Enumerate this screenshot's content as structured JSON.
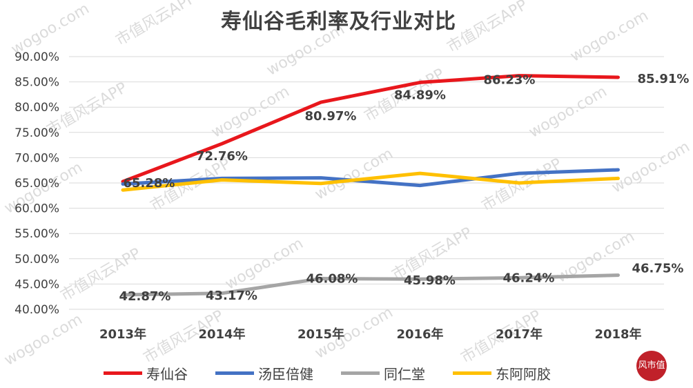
{
  "chart_data": {
    "type": "line",
    "title": "寿仙谷毛利率及行业对比",
    "categories": [
      "2013年",
      "2014年",
      "2015年",
      "2016年",
      "2017年",
      "2018年"
    ],
    "ylim": [
      40,
      90
    ],
    "yticks": [
      "40.00%",
      "45.00%",
      "50.00%",
      "55.00%",
      "60.00%",
      "65.00%",
      "70.00%",
      "75.00%",
      "80.00%",
      "85.00%",
      "90.00%"
    ],
    "grid": true,
    "legend_position": "bottom",
    "series": [
      {
        "name": "寿仙谷",
        "color": "#e8171c",
        "values": [
          65.28,
          72.76,
          80.97,
          84.89,
          86.23,
          85.91
        ],
        "labels": [
          "65.28%",
          "72.76%",
          "80.97%",
          "84.89%",
          "86.23%",
          "85.91%"
        ]
      },
      {
        "name": "汤臣倍健",
        "color": "#4472c4",
        "values": [
          64.8,
          65.9,
          66.0,
          64.5,
          66.9,
          67.6
        ],
        "labels": []
      },
      {
        "name": "同仁堂",
        "color": "#a5a5a5",
        "values": [
          42.87,
          43.17,
          46.08,
          45.98,
          46.24,
          46.75
        ],
        "labels": [
          "42.87%",
          "43.17%",
          "46.08%",
          "45.98%",
          "46.24%",
          "46.75%"
        ]
      },
      {
        "name": "东阿阿胶",
        "color": "#ffc000",
        "values": [
          63.6,
          65.6,
          64.9,
          66.9,
          65.0,
          65.9
        ],
        "labels": []
      }
    ]
  },
  "watermark": {
    "text_a": "wogoo.com",
    "text_b": "市值风云APP"
  },
  "corner_logo": {
    "text": "风市值"
  }
}
